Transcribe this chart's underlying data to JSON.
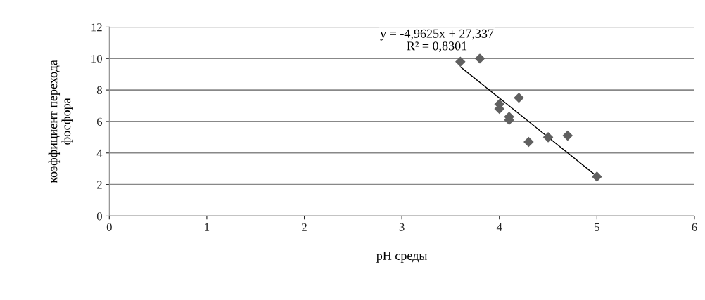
{
  "chart_data": {
    "type": "scatter",
    "xlabel": "pH среды",
    "ylabel": "коэффициент перехода\nфосфора",
    "annotations": [
      "y = -4,9625x + 27,337",
      "R² = 0,8301"
    ],
    "series": [
      {
        "color": "#606060",
        "marker": "diamond",
        "x": [
          3.6,
          3.8,
          4.0,
          4.0,
          4.1,
          4.1,
          4.2,
          4.3,
          4.5,
          4.7,
          5.0
        ],
        "values": [
          9.8,
          10.0,
          7.1,
          6.8,
          6.3,
          6.1,
          7.5,
          4.7,
          5.0,
          5.1,
          2.5
        ]
      },
      {
        "type": "line",
        "color": "#000000",
        "marker": "none",
        "line_style": "solid",
        "x": [
          3.6,
          5.0
        ],
        "values": [
          9.47,
          2.52
        ]
      }
    ],
    "xlim": [
      0,
      6
    ],
    "xticks": [
      0,
      1,
      2,
      3,
      4,
      5,
      6
    ],
    "ylim": [
      0,
      12
    ],
    "yticks": [
      0,
      2,
      4,
      6,
      8,
      10,
      12
    ],
    "grid": "y"
  }
}
